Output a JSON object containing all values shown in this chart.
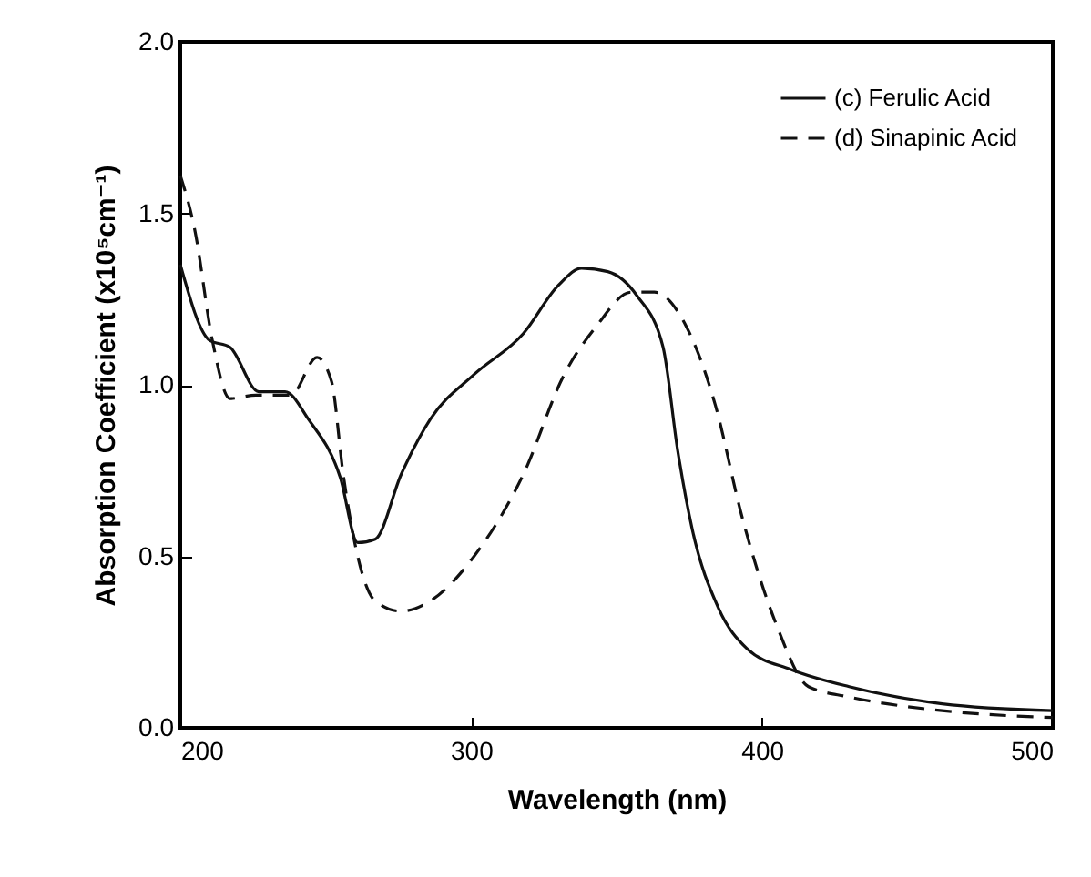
{
  "chart_data": {
    "type": "line",
    "xlabel": "Wavelength (nm)",
    "ylabel": "Absorption Coefficient (x10⁵cm⁻¹)",
    "xlim": [
      200,
      500
    ],
    "xticks": [
      200,
      300,
      400,
      500
    ],
    "ylim": [
      0,
      2
    ],
    "yticks": [
      {
        "value": 0,
        "label": "0.0"
      },
      {
        "value": 0.5,
        "label": "0.5"
      },
      {
        "value": 1,
        "label": "1.0"
      },
      {
        "value": 1.5,
        "label": "1.5"
      },
      {
        "value": 2,
        "label": "2.0"
      }
    ],
    "grid": false,
    "legend": "top right",
    "marker": "none",
    "series": [
      {
        "name": "(c) Ferulic Acid",
        "color": "#111111",
        "line_style": "solid",
        "x": [
          200,
          210,
          217,
          227,
          236,
          244,
          255,
          261,
          267,
          276,
          286,
          301,
          318,
          330,
          338,
          347,
          357,
          366,
          371,
          376,
          385,
          395,
          410,
          430,
          462,
          500
        ],
        "values": [
          1.35,
          1.13,
          1.11,
          0.98,
          0.98,
          0.9,
          0.73,
          0.54,
          0.55,
          0.74,
          0.9,
          1.03,
          1.15,
          1.29,
          1.34,
          1.33,
          1.26,
          1.11,
          0.81,
          0.58,
          0.35,
          0.23,
          0.17,
          0.12,
          0.07,
          0.05
        ]
      },
      {
        "name": "(d) Sinapinic Acid",
        "color": "#111111",
        "line_style": "dashed",
        "x": [
          200,
          205,
          211,
          217,
          226,
          238,
          247,
          252,
          256,
          261,
          267,
          276,
          286,
          301,
          318,
          332,
          343,
          355,
          363,
          374,
          384,
          393,
          405,
          416,
          430,
          462,
          500
        ],
        "values": [
          1.61,
          1.45,
          1.13,
          0.96,
          0.97,
          0.97,
          1.08,
          1.01,
          0.74,
          0.5,
          0.37,
          0.34,
          0.37,
          0.5,
          0.74,
          1.03,
          1.17,
          1.27,
          1.27,
          1.17,
          0.94,
          0.62,
          0.3,
          0.12,
          0.09,
          0.05,
          0.03
        ]
      }
    ]
  }
}
